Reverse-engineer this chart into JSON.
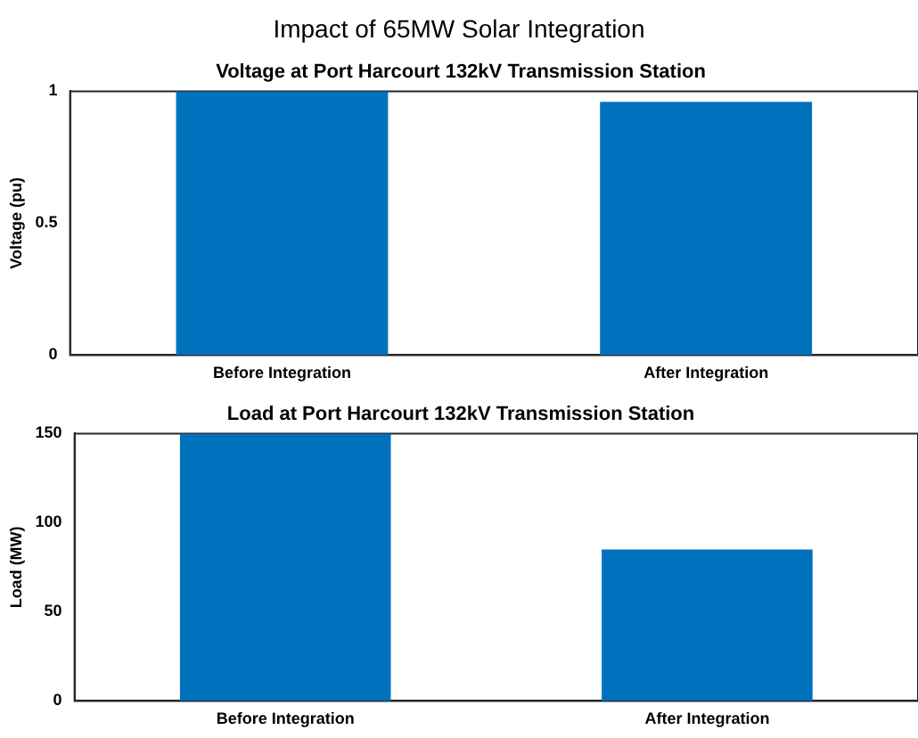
{
  "chart_data": [
    {
      "type": "bar",
      "title": "Impact of 65MW Solar Integration",
      "subtitle": "Voltage at Port Harcourt 132kV Transmission Station",
      "ylabel": "Voltage (pu)",
      "categories": [
        "Before Integration",
        "After Integration"
      ],
      "values": [
        1.0,
        0.96
      ],
      "color": "#0072bd",
      "ylim": [
        0,
        1
      ],
      "yticks": [
        0,
        0.5,
        1
      ],
      "grid": false,
      "legend": false
    },
    {
      "type": "bar",
      "title": "Load at Port Harcourt 132kV Transmission Station",
      "ylabel": "Load (MW)",
      "categories": [
        "Before Integration",
        "After Integration"
      ],
      "values": [
        150,
        85
      ],
      "color": "#0072bd",
      "ylim": [
        0,
        150
      ],
      "yticks": [
        0,
        50,
        100,
        150
      ],
      "grid": false,
      "legend": false
    }
  ]
}
